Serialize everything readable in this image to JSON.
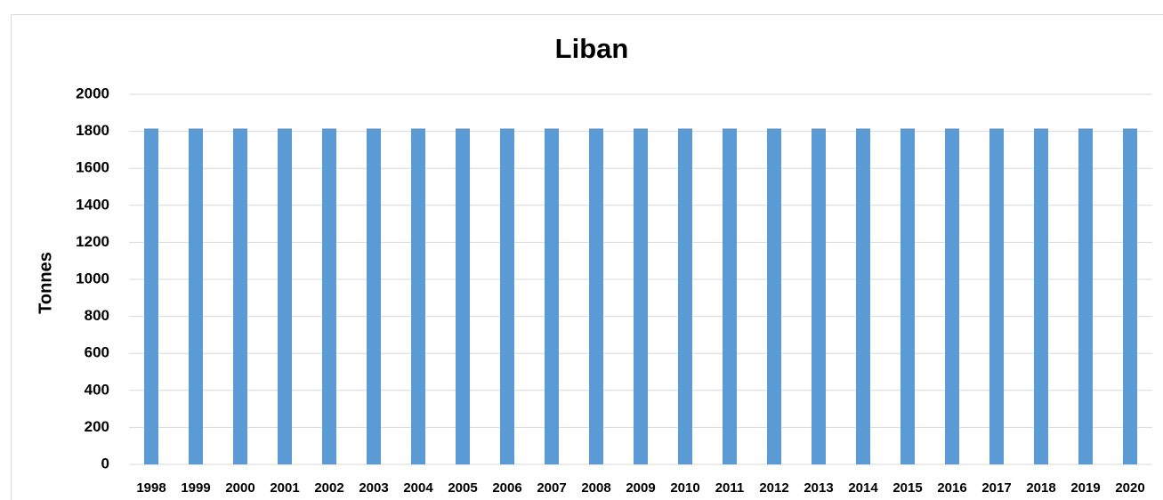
{
  "chart_data": {
    "type": "bar",
    "title": "Liban",
    "y_label": "Tonnes",
    "categories": [
      "1998",
      "1999",
      "2000",
      "2001",
      "2002",
      "2003",
      "2004",
      "2005",
      "2006",
      "2007",
      "2008",
      "2009",
      "2010",
      "2011",
      "2012",
      "2013",
      "2014",
      "2015",
      "2016",
      "2017",
      "2018",
      "2019",
      "2020"
    ],
    "values": [
      1815,
      1815,
      1815,
      1815,
      1815,
      1815,
      1815,
      1815,
      1815,
      1815,
      1815,
      1815,
      1815,
      1815,
      1815,
      1815,
      1815,
      1815,
      1815,
      1815,
      1815,
      1815,
      1815
    ],
    "color": "#5b9bd5",
    "ylim": [
      0,
      2000
    ],
    "yticks": [
      0,
      200,
      400,
      600,
      800,
      1000,
      1200,
      1400,
      1600,
      1800,
      2000
    ],
    "grid": true
  }
}
